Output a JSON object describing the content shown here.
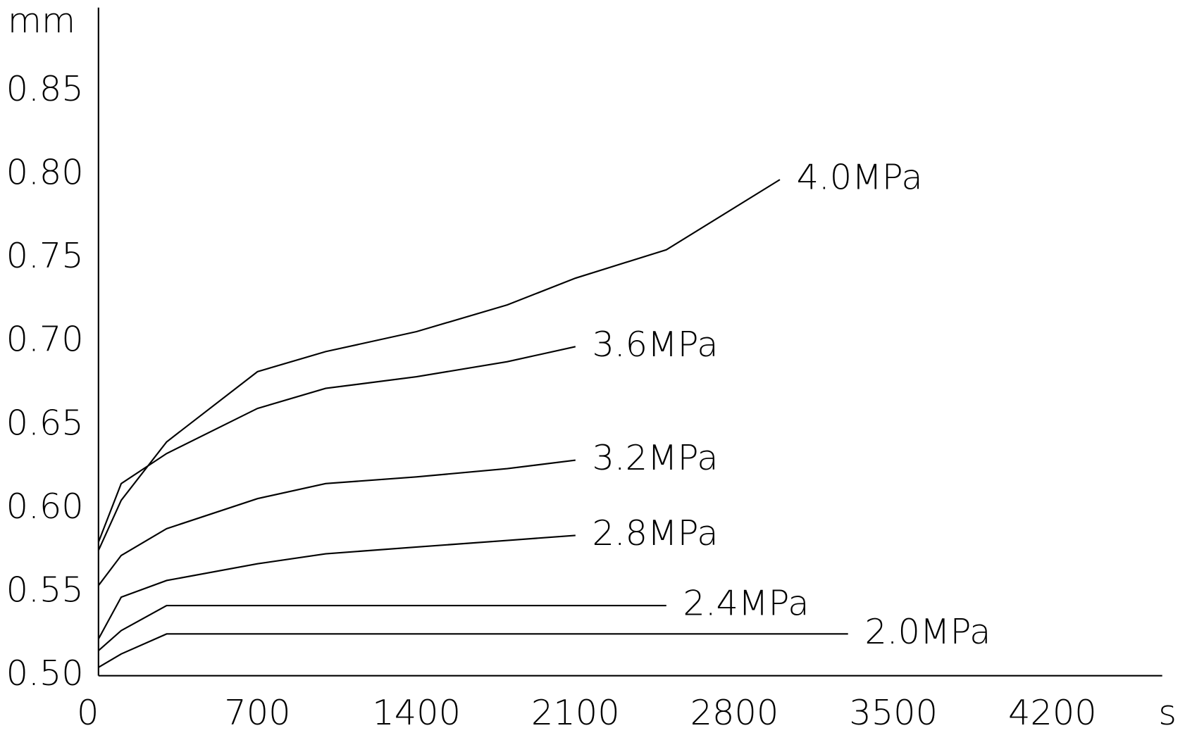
{
  "chart_data": {
    "type": "line",
    "x_label": "s",
    "y_label": "mm",
    "x": [
      0,
      100,
      300,
      700,
      1000,
      1400,
      1800,
      2100,
      2500,
      3000,
      3300
    ],
    "series": [
      {
        "name": "4.0MPa",
        "color": "#000000",
        "values": [
          0.575,
          0.605,
          0.64,
          0.682,
          0.694,
          0.706,
          0.722,
          0.738,
          0.755,
          0.797,
          null
        ]
      },
      {
        "name": "3.6MPa",
        "color": "#000000",
        "values": [
          0.58,
          0.615,
          0.633,
          0.66,
          0.672,
          0.679,
          0.688,
          0.697,
          null,
          null,
          null
        ]
      },
      {
        "name": "3.2MPa",
        "color": "#000000",
        "values": [
          0.554,
          0.572,
          0.588,
          0.606,
          0.615,
          0.619,
          0.624,
          0.629,
          null,
          null,
          null
        ]
      },
      {
        "name": "2.8MPa",
        "color": "#000000",
        "values": [
          0.522,
          0.547,
          0.557,
          0.567,
          0.573,
          0.577,
          0.581,
          0.584,
          null,
          null,
          null
        ]
      },
      {
        "name": "2.4MPa",
        "color": "#000000",
        "values": [
          0.515,
          0.527,
          0.542,
          0.542,
          0.542,
          0.542,
          0.542,
          0.542,
          0.542,
          null,
          null
        ]
      },
      {
        "name": "2.0MPa",
        "color": "#000000",
        "values": [
          0.505,
          0.513,
          0.525,
          0.525,
          0.525,
          0.525,
          0.525,
          0.525,
          0.525,
          0.525,
          0.525
        ]
      }
    ],
    "xlim": [
      0,
      4700
    ],
    "xticks": [
      0,
      700,
      1400,
      2100,
      2800,
      3500,
      4200
    ],
    "ylim": [
      0.5,
      0.9
    ],
    "yticks": [
      {
        "value": 0.5,
        "label": "0.50"
      },
      0.55,
      {
        "value": 0.6,
        "label": "0.60"
      },
      0.65,
      {
        "value": 0.7,
        "label": "0.70"
      },
      0.75,
      {
        "value": 0.8,
        "label": "0.80"
      },
      0.85
    ],
    "grid": false
  }
}
